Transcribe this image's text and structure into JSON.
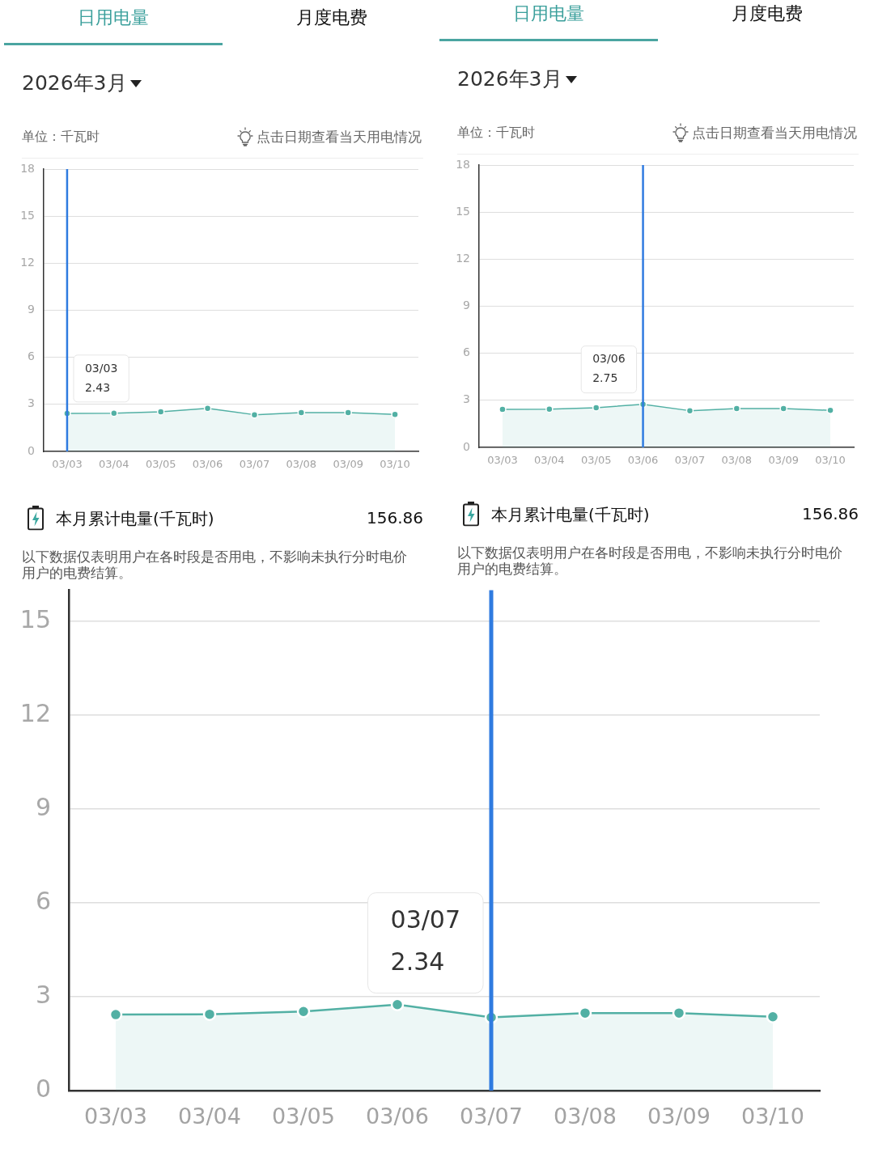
{
  "chart_data": [
    {
      "type": "area",
      "title": "2026年3月",
      "ylabel": "单位：千瓦时",
      "categories": [
        "03/03",
        "03/04",
        "03/05",
        "03/06",
        "03/07",
        "03/08",
        "03/09",
        "03/10"
      ],
      "values": [
        2.43,
        2.44,
        2.53,
        2.75,
        2.34,
        2.48,
        2.48,
        2.36
      ],
      "color": "#52b0a4",
      "ylim": [
        0,
        18
      ],
      "yticks": [
        0,
        3,
        6,
        9,
        12,
        15,
        18
      ],
      "grid": "y",
      "marker": "circle",
      "ref_lines": [
        {
          "axis": "x",
          "value": "03/03",
          "color": "#2f7be0"
        }
      ],
      "annotations": [
        "日用电量",
        "月度电费",
        "点击日期查看当天用电情况",
        "本月累计电量(千瓦时)",
        "156.86",
        "以下数据仅表明用户在各时段是否用电，不影响未执行分时电价用户的电费结算。",
        "03/03",
        "2.43"
      ]
    },
    {
      "type": "area",
      "title": "2026年3月",
      "ylabel": "单位：千瓦时",
      "categories": [
        "03/03",
        "03/04",
        "03/05",
        "03/06",
        "03/07",
        "03/08",
        "03/09",
        "03/10"
      ],
      "values": [
        2.43,
        2.44,
        2.53,
        2.75,
        2.34,
        2.48,
        2.48,
        2.36
      ],
      "color": "#52b0a4",
      "ylim": [
        0,
        18
      ],
      "yticks": [
        0,
        3,
        6,
        9,
        12,
        15,
        18
      ],
      "grid": "y",
      "marker": "circle",
      "ref_lines": [
        {
          "axis": "x",
          "value": "03/06",
          "color": "#2f7be0"
        }
      ],
      "annotations": [
        "日用电量",
        "月度电费",
        "点击日期查看当天用电情况",
        "本月累计电量(千瓦时)",
        "156.86",
        "以下数据仅表明用户在各时段是否用电，不影响未执行分时电价用户的电费结算。",
        "03/06",
        "2.75"
      ]
    },
    {
      "type": "area",
      "categories": [
        "03/03",
        "03/04",
        "03/05",
        "03/06",
        "03/07",
        "03/08",
        "03/09",
        "03/10"
      ],
      "values": [
        2.43,
        2.44,
        2.53,
        2.75,
        2.34,
        2.48,
        2.48,
        2.36
      ],
      "color": "#52b0a4",
      "ylim": [
        0,
        16
      ],
      "yticks": [
        0,
        3,
        6,
        9,
        12,
        15
      ],
      "grid": "y",
      "marker": "circle",
      "ref_lines": [
        {
          "axis": "x",
          "value": "03/07",
          "color": "#2f7be0"
        }
      ],
      "annotations": [
        "03/07",
        "2.34"
      ]
    }
  ]
}
